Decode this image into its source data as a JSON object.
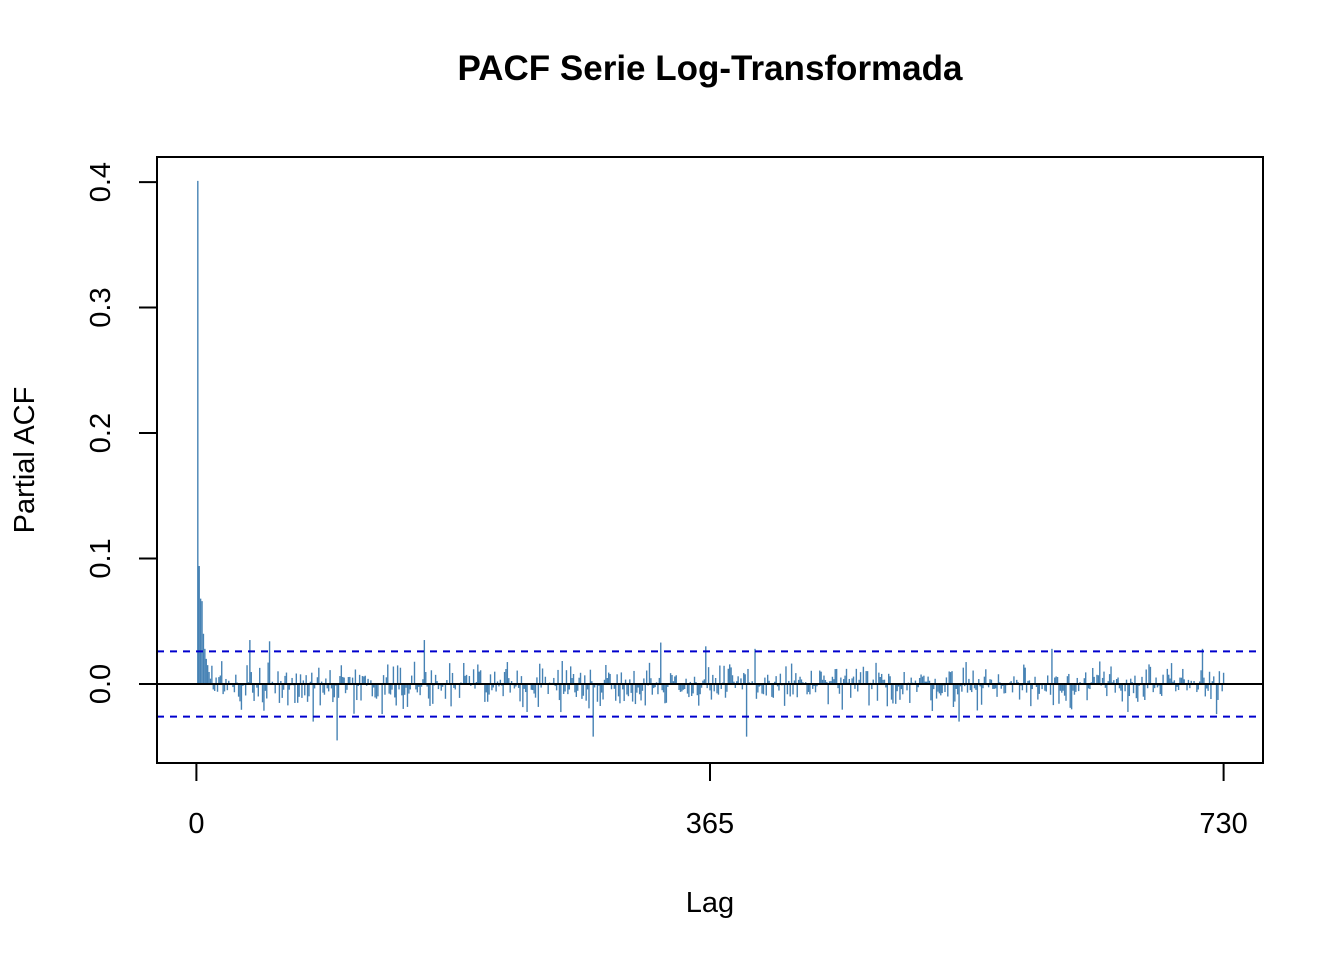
{
  "chart_data": {
    "type": "bar",
    "title": "PACF Serie Log-Transformada",
    "xlabel": "Lag",
    "ylabel": "Partial ACF",
    "xlim": [
      -28,
      758
    ],
    "ylim": [
      -0.063,
      0.42
    ],
    "x_ticks": [
      0,
      365,
      730
    ],
    "y_ticks": [
      0.0,
      0.1,
      0.2,
      0.3,
      0.4
    ],
    "x_tick_labels": [
      "0",
      "365",
      "730"
    ],
    "y_tick_labels": [
      "0.0",
      "0.1",
      "0.2",
      "0.3",
      "0.4"
    ],
    "confidence_limits": [
      0.026,
      -0.026
    ],
    "zero_line": 0,
    "grid": false,
    "legend": "none",
    "lag_start": 1,
    "lag_end": 730,
    "key_values": [
      {
        "lag": 1,
        "value": 0.401
      },
      {
        "lag": 2,
        "value": 0.094
      },
      {
        "lag": 3,
        "value": 0.068
      },
      {
        "lag": 4,
        "value": 0.066
      },
      {
        "lag": 5,
        "value": 0.04
      },
      {
        "lag": 6,
        "value": 0.028
      },
      {
        "lag": 7,
        "value": 0.02
      },
      {
        "lag": 8,
        "value": 0.015
      },
      {
        "lag": 38,
        "value": 0.035
      },
      {
        "lag": 52,
        "value": 0.034
      },
      {
        "lag": 83,
        "value": -0.03
      },
      {
        "lag": 100,
        "value": -0.045
      },
      {
        "lag": 162,
        "value": 0.035
      },
      {
        "lag": 282,
        "value": -0.042
      },
      {
        "lag": 330,
        "value": 0.033
      },
      {
        "lag": 362,
        "value": 0.03
      },
      {
        "lag": 397,
        "value": 0.028
      },
      {
        "lag": 391,
        "value": -0.042
      },
      {
        "lag": 542,
        "value": -0.03
      },
      {
        "lag": 608,
        "value": 0.028
      },
      {
        "lag": 715,
        "value": 0.028
      }
    ],
    "colors": {
      "bars": "#4682b4",
      "confidence_lines": "#0000cd",
      "zero_line": "#000000",
      "axes": "#000000"
    }
  }
}
